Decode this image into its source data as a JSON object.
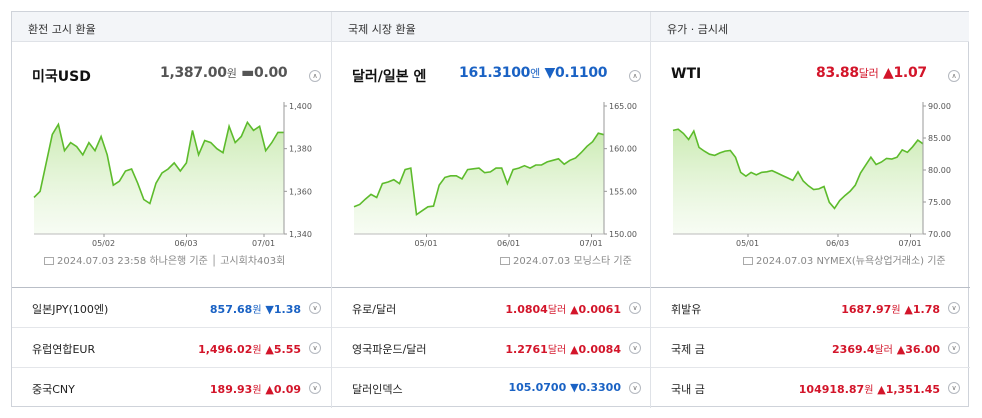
{
  "columns": [
    {
      "header": "환전 고시 환율",
      "quote": {
        "name": "미국USD",
        "value": "1,387.00",
        "unit": "원",
        "arrow": "▬",
        "change": "0.00",
        "direction": "flat",
        "color": "#555555"
      },
      "chart": {
        "type": "line",
        "y_ticks": [
          "1,400",
          "1,380",
          "1,360",
          "1,340"
        ],
        "ylim": [
          1337,
          1400
        ],
        "x_ticks": [
          "05/02",
          "06/03",
          "07/01"
        ],
        "x_tick_positions": [
          0.28,
          0.61,
          0.92
        ],
        "values": [
          1355,
          1358,
          1372,
          1386,
          1391,
          1378,
          1382,
          1380,
          1376,
          1382,
          1378,
          1385,
          1376,
          1361,
          1363,
          1368,
          1369,
          1362,
          1354,
          1352,
          1362,
          1367,
          1369,
          1372,
          1368,
          1372,
          1388,
          1376,
          1383,
          1382,
          1379,
          1377,
          1390,
          1382,
          1385,
          1392,
          1388,
          1390,
          1378,
          1382,
          1387,
          1387
        ]
      },
      "source": {
        "date": "2024.07.03 23:58",
        "text": "하나은행 기준",
        "extra": "고시회차403회"
      },
      "rows": [
        {
          "name": "일본JPY(100엔)",
          "value": "857.68",
          "unit": "원",
          "arrow": "▼",
          "change": "1.38",
          "direction": "down"
        },
        {
          "name": "유럽연합EUR",
          "value": "1,496.02",
          "unit": "원",
          "arrow": "▲",
          "change": "5.55",
          "direction": "up"
        },
        {
          "name": "중국CNY",
          "value": "189.93",
          "unit": "원",
          "arrow": "▲",
          "change": "0.09",
          "direction": "up"
        }
      ]
    },
    {
      "header": "국제 시장 환율",
      "quote": {
        "name": "달러/일본 엔",
        "value": "161.3100",
        "unit": "엔",
        "arrow": "▼",
        "change": "0.1100",
        "direction": "down",
        "color": "#1a62c4"
      },
      "chart": {
        "type": "line",
        "y_ticks": [
          "165.00",
          "160.00",
          "155.00",
          "150.00"
        ],
        "ylim": [
          148.5,
          165
        ],
        "x_ticks": [
          "05/01",
          "06/01",
          "07/01"
        ],
        "x_tick_positions": [
          0.29,
          0.62,
          0.95
        ],
        "values": [
          152,
          152.3,
          153,
          153.6,
          153.2,
          155,
          155.2,
          155.5,
          155,
          156.8,
          157,
          151,
          151.5,
          152,
          152.1,
          154.8,
          155.8,
          156,
          156,
          155.6,
          156.8,
          156.9,
          157,
          156.4,
          156.5,
          157,
          157,
          155,
          156.8,
          157,
          157.3,
          157,
          157.4,
          157.4,
          157.8,
          158,
          158.2,
          157.5,
          158,
          158.3,
          159,
          159.8,
          160.4,
          161.5,
          161.3
        ]
      },
      "source": {
        "date": "2024.07.03",
        "text": "모닝스타 기준",
        "extra": ""
      },
      "rows": [
        {
          "name": "유로/달러",
          "value": "1.0804",
          "unit": "달러",
          "arrow": "▲",
          "change": "0.0061",
          "direction": "up"
        },
        {
          "name": "영국파운드/달러",
          "value": "1.2761",
          "unit": "달러",
          "arrow": "▲",
          "change": "0.0084",
          "direction": "up"
        },
        {
          "name": "달러인덱스",
          "value": "105.0700",
          "unit": "",
          "arrow": "▼",
          "change": "0.3300",
          "direction": "down"
        }
      ]
    },
    {
      "header": "유가 · 금시세",
      "quote": {
        "name": "WTI",
        "value": "83.88",
        "unit": "달러",
        "arrow": "▲",
        "change": "1.07",
        "direction": "up",
        "color": "#d3152a"
      },
      "chart": {
        "type": "line",
        "y_ticks": [
          "90.00",
          "85.00",
          "80.00",
          "75.00",
          "70.00"
        ],
        "ylim": [
          69,
          90
        ],
        "x_ticks": [
          "05/01",
          "06/03",
          "07/01"
        ],
        "x_tick_positions": [
          0.3,
          0.66,
          0.95
        ],
        "values": [
          86,
          86.2,
          85.5,
          84.5,
          85.9,
          83.2,
          82.6,
          82.1,
          81.9,
          82.3,
          82.6,
          82.7,
          81.6,
          79.1,
          78.5,
          79.1,
          78.7,
          79.1,
          79.2,
          79.4,
          79,
          78.6,
          78.2,
          77.8,
          79.2,
          77.7,
          76.9,
          76.3,
          76.4,
          76.8,
          74.2,
          73.2,
          74.5,
          75.3,
          76,
          77,
          79,
          80.3,
          81.6,
          80.4,
          80.8,
          81.4,
          81.3,
          81.6,
          82.8,
          82.4,
          83.3,
          84.4,
          83.8
        ]
      },
      "source": {
        "date": "2024.07.03",
        "text": "NYMEX(뉴욕상업거래소) 기준",
        "extra": ""
      },
      "rows": [
        {
          "name": "휘발유",
          "value": "1687.97",
          "unit": "원",
          "arrow": "▲",
          "change": "1.78",
          "direction": "up"
        },
        {
          "name": "국제 금",
          "value": "2369.4",
          "unit": "달러",
          "arrow": "▲",
          "change": "36.00",
          "direction": "up"
        },
        {
          "name": "국내 금",
          "value": "104918.87",
          "unit": "원",
          "arrow": "▲",
          "change": "1,351.45",
          "direction": "up"
        }
      ]
    }
  ],
  "colors": {
    "up": "#d3152a",
    "down": "#1a62c4",
    "flat": "#555555",
    "line": "#5dbb2c",
    "fill": "#d8f0c8"
  },
  "icons": {
    "toggle": "chevron-up-icon",
    "row_toggle": "chevron-down-icon",
    "source": "document-icon"
  }
}
